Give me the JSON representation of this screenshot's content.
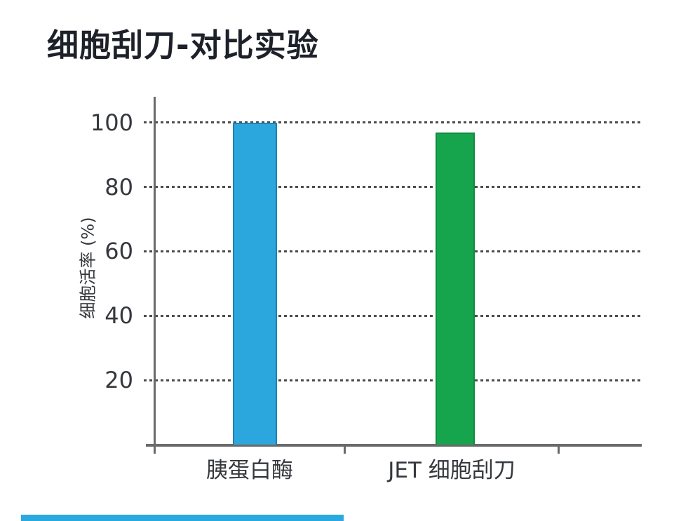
{
  "title": "细胞刮刀-对比实验",
  "chart_data": {
    "type": "bar",
    "title": "细胞刮刀-对比实验",
    "categories": [
      "胰蛋白酶",
      "JET 细胞刮刀"
    ],
    "series": [
      {
        "name": "细胞活率",
        "values": [
          100,
          97
        ]
      }
    ],
    "xlabel": "",
    "ylabel": "细胞活率 (%)",
    "yticks": [
      20,
      40,
      60,
      80,
      100
    ],
    "ylim": [
      0,
      107
    ],
    "grid": "horizontal-dotted",
    "legend": "none",
    "bar_colors": [
      "#2ba7dd",
      "#16a54d"
    ],
    "bar_edge_colors": [
      "#1e81b4",
      "#0f8c3f"
    ]
  },
  "colors": {
    "background": "#ffffff",
    "title_text": "#1d2129",
    "axis": "#6a6a6a",
    "grid_dots": "#4c4c4c",
    "tick_label": "#35383d",
    "bar_blue": "#2ba7dd",
    "bar_green": "#16a54d",
    "footer_accent": "#2aa9e0"
  }
}
